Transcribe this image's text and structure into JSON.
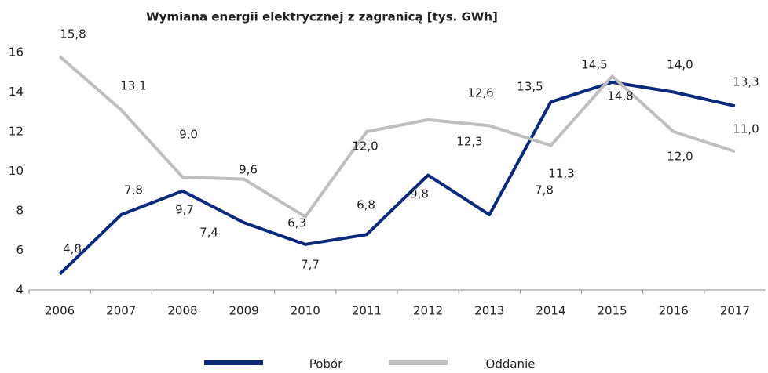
{
  "chart_data": {
    "type": "line",
    "title": "Wymiana energii elektrycznej z zagranicą [tys. GWh]",
    "categories": [
      "2006",
      "2007",
      "2008",
      "2009",
      "2010",
      "2011",
      "2012",
      "2013",
      "2014",
      "2015",
      "2016",
      "2017"
    ],
    "series": [
      {
        "name": "Pobór",
        "color": "#0b2a7a",
        "values": [
          4.8,
          7.8,
          9.0,
          7.4,
          6.3,
          6.8,
          9.8,
          7.8,
          13.5,
          14.5,
          14.0,
          13.3
        ],
        "value_labels": [
          "4,8",
          "7,8",
          "9,0",
          "7,4",
          "6,3",
          "6,8",
          "9,8",
          "7,8",
          "13,5",
          "14,5",
          "14,0",
          "13,3"
        ]
      },
      {
        "name": "Oddanie",
        "color": "#bfbfbf",
        "values": [
          15.8,
          13.1,
          9.7,
          9.6,
          7.7,
          12.0,
          12.6,
          12.3,
          11.3,
          14.8,
          12.0,
          11.0
        ],
        "value_labels": [
          "15,8",
          "13,1",
          "9,7",
          "9,6",
          "7,7",
          "12,0",
          "12,6",
          "12,3",
          "11,3",
          "14,8",
          "12,0",
          "11,0"
        ]
      }
    ],
    "ylim": [
      4,
      16
    ],
    "yticks": [
      4,
      6,
      8,
      10,
      12,
      14,
      16
    ],
    "grid": false,
    "legend": "bottom"
  }
}
